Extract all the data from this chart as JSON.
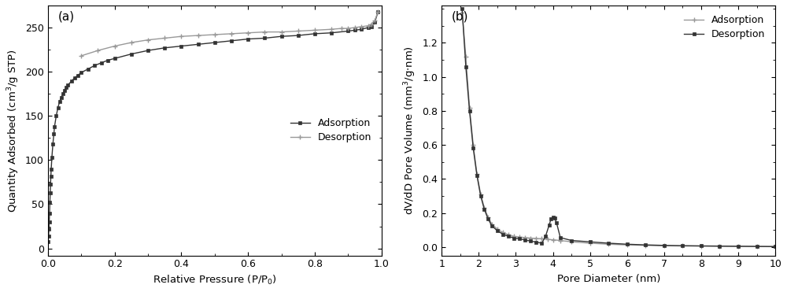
{
  "panel_a": {
    "label": "(a)",
    "xlabel": "Relative Pressure (P/P$_0$)",
    "ylabel": "Quantity Adsorbed (cm$^3$/g STP)",
    "xlim": [
      0.0,
      1.0
    ],
    "ylim": [
      -8,
      275
    ],
    "yticks": [
      0,
      50,
      100,
      150,
      200,
      250
    ],
    "xticks": [
      0.0,
      0.2,
      0.4,
      0.6,
      0.8,
      1.0
    ],
    "adsorption_x": [
      0.001,
      0.002,
      0.003,
      0.004,
      0.005,
      0.006,
      0.007,
      0.008,
      0.009,
      0.01,
      0.012,
      0.015,
      0.018,
      0.02,
      0.025,
      0.03,
      0.035,
      0.04,
      0.045,
      0.05,
      0.055,
      0.06,
      0.07,
      0.08,
      0.09,
      0.1,
      0.12,
      0.14,
      0.16,
      0.18,
      0.2,
      0.25,
      0.3,
      0.35,
      0.4,
      0.45,
      0.5,
      0.55,
      0.6,
      0.65,
      0.7,
      0.75,
      0.8,
      0.85,
      0.9,
      0.92,
      0.94,
      0.96,
      0.97,
      0.98,
      0.99
    ],
    "adsorption_y": [
      8,
      14,
      22,
      30,
      40,
      52,
      63,
      73,
      82,
      90,
      103,
      118,
      130,
      138,
      150,
      159,
      166,
      171,
      175,
      179,
      182,
      185,
      189,
      193,
      196,
      199,
      203,
      207,
      210,
      213,
      215,
      220,
      224,
      227,
      229,
      231,
      233,
      235,
      237,
      238,
      240,
      241,
      243,
      244,
      246,
      247,
      248,
      250,
      251,
      256,
      268
    ],
    "desorption_x": [
      0.99,
      0.98,
      0.97,
      0.96,
      0.94,
      0.92,
      0.9,
      0.88,
      0.85,
      0.8,
      0.75,
      0.7,
      0.65,
      0.6,
      0.55,
      0.5,
      0.45,
      0.4,
      0.35,
      0.3,
      0.25,
      0.2,
      0.15,
      0.1
    ],
    "desorption_y": [
      268,
      258,
      254,
      252,
      251,
      250,
      249,
      249,
      248,
      247,
      246,
      245,
      245,
      244,
      243,
      242,
      241,
      240,
      238,
      236,
      233,
      229,
      224,
      218
    ],
    "adsorption_color": "#333333",
    "desorption_color": "#999999",
    "legend_adsorption": "Adsorption",
    "legend_desorption": "Desorption"
  },
  "panel_b": {
    "label": "(b)",
    "xlabel": "Pore Diameter (nm)",
    "ylabel": "dV/dD Pore Volume (mm$^3$/g$\\cdot$nm)",
    "xlim": [
      1,
      10
    ],
    "ylim": [
      -0.05,
      1.42
    ],
    "yticks": [
      0.0,
      0.2,
      0.4,
      0.6,
      0.8,
      1.0,
      1.2
    ],
    "xticks": [
      1,
      2,
      3,
      4,
      5,
      6,
      7,
      8,
      9,
      10
    ],
    "adsorption_x": [
      1.55,
      1.65,
      1.75,
      1.85,
      1.95,
      2.05,
      2.15,
      2.25,
      2.35,
      2.5,
      2.65,
      2.8,
      2.95,
      3.1,
      3.25,
      3.4,
      3.55,
      3.7,
      3.85,
      4.0,
      4.2,
      4.5,
      5.0,
      5.5,
      6.0,
      6.5,
      7.0,
      7.5,
      8.0,
      8.5,
      9.0,
      9.5,
      10.0
    ],
    "adsorption_y": [
      1.38,
      1.12,
      0.82,
      0.6,
      0.43,
      0.31,
      0.23,
      0.175,
      0.135,
      0.105,
      0.085,
      0.072,
      0.062,
      0.058,
      0.055,
      0.052,
      0.05,
      0.048,
      0.045,
      0.042,
      0.038,
      0.03,
      0.022,
      0.016,
      0.012,
      0.009,
      0.007,
      0.006,
      0.005,
      0.004,
      0.003,
      0.003,
      0.002
    ],
    "desorption_x": [
      1.55,
      1.65,
      1.75,
      1.85,
      1.95,
      2.05,
      2.15,
      2.25,
      2.35,
      2.5,
      2.65,
      2.8,
      2.95,
      3.1,
      3.25,
      3.4,
      3.55,
      3.7,
      3.8,
      3.9,
      3.95,
      4.0,
      4.05,
      4.1,
      4.2,
      4.5,
      5.0,
      5.5,
      6.0,
      6.5,
      7.0,
      7.5,
      8.0,
      8.5,
      9.0,
      9.5,
      10.0
    ],
    "desorption_y": [
      1.4,
      1.06,
      0.8,
      0.58,
      0.42,
      0.3,
      0.22,
      0.165,
      0.125,
      0.095,
      0.075,
      0.062,
      0.052,
      0.048,
      0.04,
      0.035,
      0.028,
      0.022,
      0.062,
      0.13,
      0.165,
      0.175,
      0.168,
      0.14,
      0.055,
      0.038,
      0.03,
      0.022,
      0.016,
      0.012,
      0.009,
      0.007,
      0.006,
      0.005,
      0.004,
      0.003,
      0.002
    ],
    "adsorption_color": "#999999",
    "desorption_color": "#333333",
    "legend_adsorption": "Adsorption",
    "legend_desorption": "Desorption"
  },
  "figure_bg": "#ffffff",
  "axes_bg": "#ffffff",
  "spine_color": "#000000"
}
